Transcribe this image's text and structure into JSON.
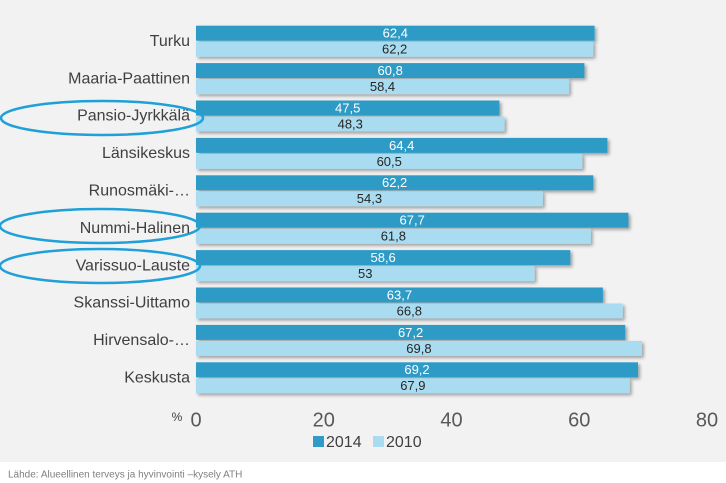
{
  "chart_data": {
    "type": "bar",
    "orientation": "horizontal",
    "categories": [
      "Turku",
      "Maaria-Paattinen",
      "Pansio-Jyrkkälä",
      "Länsikeskus",
      "Runosmäki-…",
      "Nummi-Halinen",
      "Varissuo-Lauste",
      "Skanssi-Uittamo",
      "Hirvensalo-…",
      "Keskusta"
    ],
    "series": [
      {
        "name": "2014",
        "color": "#2f9bc6",
        "values": [
          62.4,
          60.8,
          47.5,
          64.4,
          62.2,
          67.7,
          58.6,
          63.7,
          67.2,
          69.2
        ],
        "value_labels": [
          "62,4",
          "60,8",
          "47,5",
          "64,4",
          "62,2",
          "67,7",
          "58,6",
          "63,7",
          "67,2",
          "69,2"
        ]
      },
      {
        "name": "2010",
        "color": "#a9dcf0",
        "values": [
          62.2,
          58.4,
          48.3,
          60.5,
          54.3,
          61.8,
          53,
          66.8,
          69.8,
          67.9
        ],
        "value_labels": [
          "62,2",
          "58,4",
          "48,3",
          "60,5",
          "54,3",
          "61,8",
          "53",
          "66,8",
          "69,8",
          "67,9"
        ]
      }
    ],
    "x_label": "%",
    "xlim": [
      0,
      80
    ],
    "xticks": [
      0,
      20,
      40,
      60,
      80
    ],
    "source": "Lähde: Alueellinen terveys ja hyvinvointi –kysely ATH"
  }
}
